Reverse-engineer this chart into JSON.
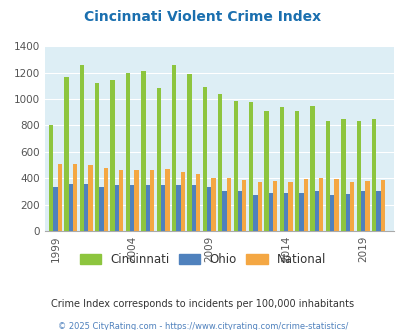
{
  "title": "Cincinnati Violent Crime Index",
  "title_color": "#1a6faf",
  "years": [
    1999,
    2000,
    2001,
    2002,
    2003,
    2004,
    2005,
    2006,
    2007,
    2008,
    2009,
    2010,
    2011,
    2012,
    2013,
    2014,
    2015,
    2016,
    2017,
    2018,
    2019,
    2020
  ],
  "cincinnati": [
    800,
    1170,
    1255,
    1120,
    1145,
    1195,
    1210,
    1080,
    1255,
    1190,
    1090,
    1040,
    985,
    975,
    910,
    940,
    910,
    950,
    830,
    845,
    830,
    845
  ],
  "ohio": [
    330,
    355,
    355,
    330,
    345,
    350,
    350,
    350,
    350,
    350,
    335,
    305,
    300,
    275,
    285,
    285,
    285,
    300,
    275,
    280,
    300,
    305
  ],
  "national": [
    505,
    505,
    500,
    475,
    460,
    465,
    465,
    470,
    445,
    435,
    405,
    400,
    390,
    375,
    380,
    375,
    395,
    400,
    395,
    375,
    380,
    385
  ],
  "cincinnati_color": "#8dc53e",
  "ohio_color": "#4f81bd",
  "national_color": "#f4a743",
  "plot_bg_color": "#ddeef5",
  "ylim": [
    0,
    1400
  ],
  "yticks": [
    0,
    200,
    400,
    600,
    800,
    1000,
    1200,
    1400
  ],
  "xtick_labels": [
    "1999",
    "2004",
    "2009",
    "2014",
    "2019"
  ],
  "xtick_positions": [
    1999,
    2004,
    2009,
    2014,
    2019
  ],
  "legend_labels": [
    "Cincinnati",
    "Ohio",
    "National"
  ],
  "footnote": "Crime Index corresponds to incidents per 100,000 inhabitants",
  "copyright": "© 2025 CityRating.com - https://www.cityrating.com/crime-statistics/",
  "footnote_color": "#333333",
  "copyright_color": "#4f81bd",
  "bar_width": 0.28
}
